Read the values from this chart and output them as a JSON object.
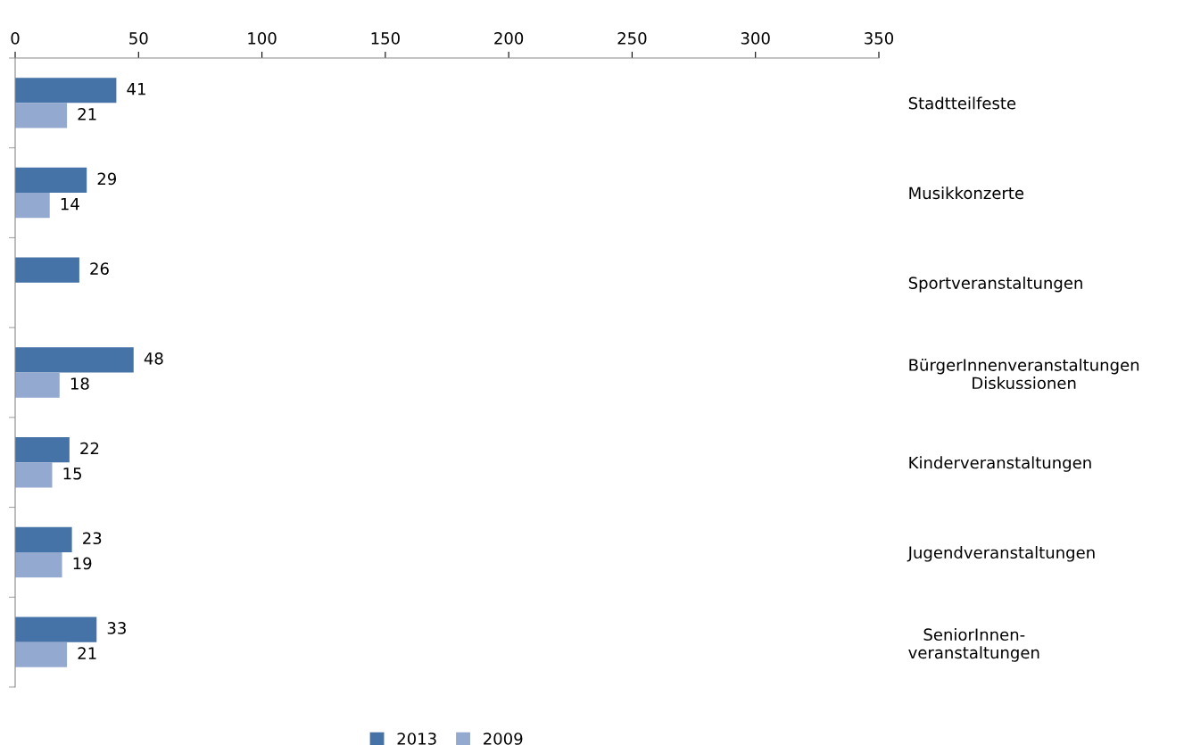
{
  "chart_data": {
    "type": "bar",
    "orientation": "horizontal",
    "categories": [
      "Stadtteilfeste",
      "Musikkonzerte",
      "Sportveranstaltungen",
      "BürgerInnenveranstaltungen\nDiskussionen",
      "Kinderveranstaltungen",
      "Jugendveranstaltungen",
      "SeniorInnen-\nveranstaltungen"
    ],
    "series": [
      {
        "name": "2013",
        "color": "#4572a7",
        "values": [
          41,
          29,
          26,
          48,
          22,
          23,
          33
        ]
      },
      {
        "name": "2009",
        "color": "#93a9cf",
        "values": [
          21,
          14,
          null,
          18,
          15,
          19,
          21
        ]
      }
    ],
    "xlim": [
      0,
      350
    ],
    "xticks": [
      0,
      50,
      100,
      150,
      200,
      250,
      300,
      350
    ],
    "data_labels": true,
    "grid": false,
    "legend": "bottom"
  }
}
